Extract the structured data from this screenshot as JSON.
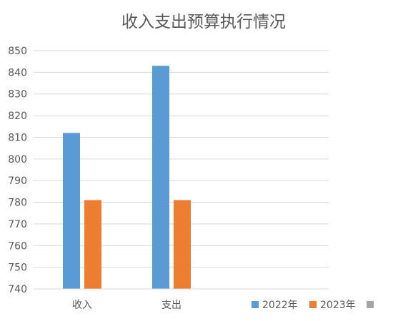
{
  "chart_data": {
    "type": "bar",
    "title": "收入支出预算执行情况",
    "categories": [
      "收入",
      "支出"
    ],
    "series": [
      {
        "name": "2022年",
        "color": "#5B9BD5",
        "values": [
          812,
          843
        ]
      },
      {
        "name": "2023年",
        "color": "#ED7D31",
        "values": [
          781,
          781
        ]
      },
      {
        "name": "",
        "color": "#A5A5A5",
        "values": [
          null,
          null
        ]
      }
    ],
    "ylim": [
      740,
      850
    ],
    "yticks": [
      740,
      750,
      760,
      770,
      780,
      790,
      800,
      810,
      820,
      830,
      840,
      850
    ],
    "grid": true,
    "legend": "bottom-right",
    "xlabel": "",
    "ylabel": ""
  }
}
